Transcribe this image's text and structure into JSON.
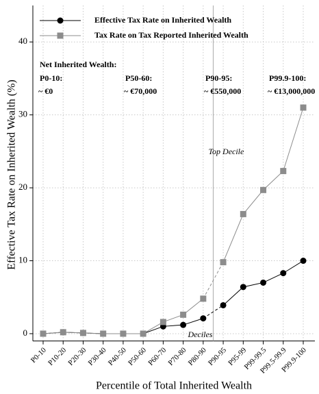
{
  "chart_data": {
    "type": "line",
    "categories": [
      "P0-10",
      "P10-20",
      "P20-30",
      "P30-40",
      "P40-50",
      "P50-60",
      "P60-70",
      "P70-80",
      "P80-90",
      "P90-95",
      "P95-99",
      "P99-99.5",
      "P99.5-99.9",
      "P99.9-100"
    ],
    "series": [
      {
        "name": "Effective Tax Rate on Inherited Wealth",
        "color": "#000000",
        "marker": "circle",
        "values": [
          0,
          0.2,
          0.1,
          0,
          0,
          0,
          1.0,
          1.2,
          2.1,
          3.9,
          6.4,
          7.0,
          8.3,
          10.0
        ]
      },
      {
        "name": "Tax Rate on Tax Reported Inherited Wealth",
        "color": "#8c8c8c",
        "marker": "square",
        "values": [
          0,
          0.2,
          0.1,
          0,
          0,
          0,
          1.6,
          2.6,
          4.8,
          9.8,
          16.4,
          19.7,
          22.3,
          31.0
        ]
      }
    ],
    "dashed_segments": [
      8
    ],
    "ylim": [
      -1,
      45
    ],
    "yticks": [
      0,
      10,
      20,
      30,
      40
    ],
    "grid": true,
    "y_label": "Effective Tax Rate on Inherited Wealth (%)",
    "x_label": "Percentile of Total Inherited Wealth",
    "legend": "top-left",
    "wealth_header": "Net Inherited Wealth:",
    "wealth_labels": [
      {
        "group": "P0-10:",
        "amount": "~ €0"
      },
      {
        "group": "P50-60:",
        "amount": "~ €70,000"
      },
      {
        "group": "P90-95:",
        "amount": "~ €550,000"
      },
      {
        "group": "P99.9-100:",
        "amount": "~ €13,000,000"
      }
    ],
    "divider_labels": {
      "top": "Top Decile",
      "bottom": "Deciles"
    }
  }
}
